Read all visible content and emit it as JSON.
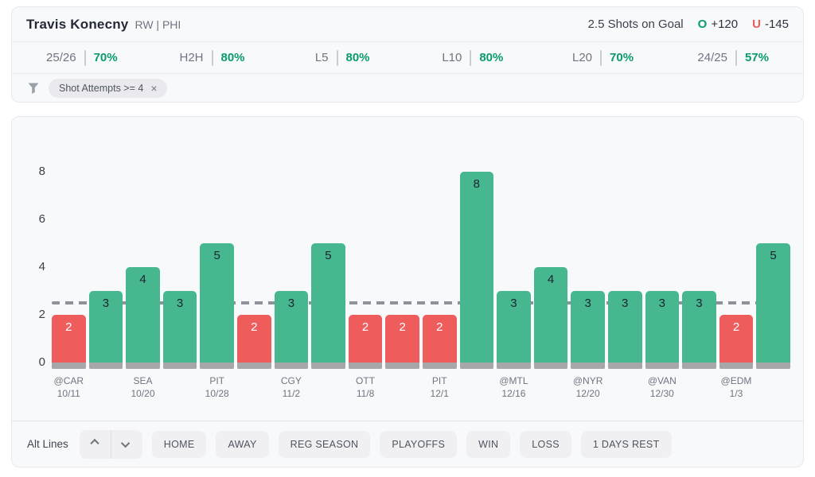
{
  "header": {
    "player": "Travis Konecny",
    "position": "RW | PHI",
    "prop": "2.5 Shots on Goal",
    "over_label": "O",
    "over_odds": "+120",
    "under_label": "U",
    "under_odds": "-145"
  },
  "stats": [
    {
      "label": "25/26",
      "value": "70%"
    },
    {
      "label": "H2H",
      "value": "80%"
    },
    {
      "label": "L5",
      "value": "80%"
    },
    {
      "label": "L10",
      "value": "80%"
    },
    {
      "label": "L20",
      "value": "70%"
    },
    {
      "label": "24/25",
      "value": "57%"
    }
  ],
  "filter": {
    "chip_text": "Shot Attempts >= 4",
    "close_icon": "×",
    "funnel_icon": "funnel"
  },
  "chart_data": {
    "type": "bar",
    "title": "",
    "xlabel": "",
    "ylabel": "",
    "ylim": [
      0,
      8
    ],
    "yticks": [
      0,
      2,
      4,
      6,
      8
    ],
    "prop_line": 2.5,
    "grid": false,
    "bars": [
      {
        "value": 2,
        "result": "under",
        "team": "@CAR",
        "date": "10/11"
      },
      {
        "value": 3,
        "result": "over",
        "team": "",
        "date": ""
      },
      {
        "value": 4,
        "result": "over",
        "team": "SEA",
        "date": "10/20"
      },
      {
        "value": 3,
        "result": "over",
        "team": "",
        "date": ""
      },
      {
        "value": 5,
        "result": "over",
        "team": "PIT",
        "date": "10/28"
      },
      {
        "value": 2,
        "result": "under",
        "team": "",
        "date": ""
      },
      {
        "value": 3,
        "result": "over",
        "team": "CGY",
        "date": "11/2"
      },
      {
        "value": 5,
        "result": "over",
        "team": "",
        "date": ""
      },
      {
        "value": 2,
        "result": "under",
        "team": "OTT",
        "date": "11/8"
      },
      {
        "value": 2,
        "result": "under",
        "team": "",
        "date": ""
      },
      {
        "value": 2,
        "result": "under",
        "team": "PIT",
        "date": "12/1"
      },
      {
        "value": 8,
        "result": "over",
        "team": "",
        "date": ""
      },
      {
        "value": 3,
        "result": "over",
        "team": "@MTL",
        "date": "12/16"
      },
      {
        "value": 4,
        "result": "over",
        "team": "",
        "date": ""
      },
      {
        "value": 3,
        "result": "over",
        "team": "@NYR",
        "date": "12/20"
      },
      {
        "value": 3,
        "result": "over",
        "team": "",
        "date": ""
      },
      {
        "value": 3,
        "result": "over",
        "team": "@VAN",
        "date": "12/30"
      },
      {
        "value": 3,
        "result": "over",
        "team": "",
        "date": ""
      },
      {
        "value": 2,
        "result": "under",
        "team": "@EDM",
        "date": "1/3"
      },
      {
        "value": 5,
        "result": "over",
        "team": "",
        "date": ""
      }
    ],
    "colors": {
      "over": "#46b78f",
      "under": "#ee5c5c",
      "bar_base": "#a7a7a9",
      "line": "#8d929b",
      "pct_green": "#0a9b6b"
    }
  },
  "toolbar": {
    "alt_lines_label": "Alt Lines",
    "buttons": [
      "HOME",
      "AWAY",
      "REG SEASON",
      "PLAYOFFS",
      "WIN",
      "LOSS",
      "1 DAYS REST"
    ]
  }
}
